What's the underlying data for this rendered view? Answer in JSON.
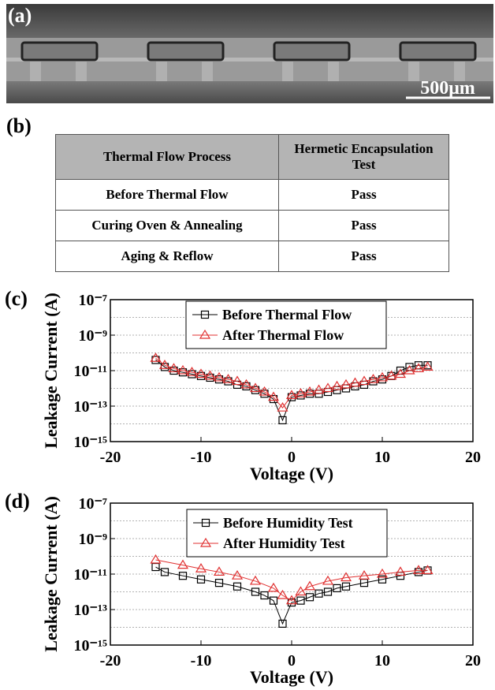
{
  "panels": {
    "a": "(a)",
    "b": "(b)",
    "c": "(c)",
    "d": "(d)"
  },
  "image": {
    "scale_bar": "500μm"
  },
  "table": {
    "header": [
      "Thermal Flow Process",
      "Hermetic Encapsulation Test"
    ],
    "rows": [
      [
        "Before Thermal Flow",
        "Pass"
      ],
      [
        "Curing Oven & Annealing",
        "Pass"
      ],
      [
        "Aging & Reflow",
        "Pass"
      ]
    ]
  },
  "chart_data": [
    {
      "type": "line",
      "log_y": true,
      "x_label": "Voltage (V)",
      "y_label": "Leakage Current (A)",
      "legend": "top",
      "grid": true,
      "xlim": [
        -20,
        20
      ],
      "xticks": [
        -20,
        -10,
        0,
        10,
        20
      ],
      "ylim": [
        1e-15,
        1e-07
      ],
      "yticks": [
        {
          "value": 1e-15,
          "label": "10⁻¹⁵"
        },
        {
          "value": 1e-13,
          "label": "10⁻¹³"
        },
        {
          "value": 1e-11,
          "label": "10⁻¹¹"
        },
        {
          "value": 1e-09,
          "label": "10⁻⁹"
        },
        {
          "value": 1e-07,
          "label": "10⁻⁷"
        }
      ],
      "minor_yticks": [
        1e-14,
        1e-12,
        1e-10,
        1e-08
      ],
      "series": [
        {
          "name": "Before Thermal Flow",
          "color": "#000000",
          "marker": "square",
          "x": [
            -15,
            -14,
            -13,
            -12,
            -11,
            -10,
            -9,
            -8,
            -7,
            -6,
            -5,
            -4,
            -3,
            -2,
            -1,
            0,
            1,
            2,
            3,
            4,
            5,
            6,
            7,
            8,
            9,
            10,
            11,
            12,
            13,
            14,
            15
          ],
          "values": [
            4e-11,
            1.6e-11,
            1e-11,
            8e-12,
            6.3e-12,
            5e-12,
            4e-12,
            3.2e-12,
            2.5e-12,
            1.6e-12,
            1.3e-12,
            8e-13,
            5e-13,
            2.5e-13,
            1.6e-14,
            3.2e-13,
            4e-13,
            5e-13,
            5e-13,
            6.3e-13,
            8e-13,
            1e-12,
            1.3e-12,
            1.6e-12,
            2.5e-12,
            3.2e-12,
            5e-12,
            1e-11,
            1.6e-11,
            2e-11,
            2e-11
          ]
        },
        {
          "name": "After Thermal Flow",
          "color": "#e03030",
          "marker": "triangle",
          "x": [
            -15,
            -14,
            -13,
            -12,
            -11,
            -10,
            -9,
            -8,
            -7,
            -6,
            -5,
            -4,
            -3,
            -2,
            -1,
            0,
            1,
            2,
            3,
            4,
            5,
            6,
            7,
            8,
            9,
            10,
            11,
            12,
            13,
            14,
            15
          ],
          "values": [
            5e-11,
            2e-11,
            1.3e-11,
            1e-11,
            8e-12,
            6.3e-12,
            5e-12,
            4e-12,
            3.2e-12,
            2.5e-12,
            1.6e-12,
            1e-12,
            6.3e-13,
            3.2e-13,
            8e-14,
            4e-13,
            5e-13,
            6.3e-13,
            8e-13,
            1e-12,
            1.3e-12,
            1.6e-12,
            2e-12,
            2.5e-12,
            3.2e-12,
            4e-12,
            5e-12,
            6.3e-12,
            1e-11,
            1.3e-11,
            1.6e-11
          ]
        }
      ]
    },
    {
      "type": "line",
      "log_y": true,
      "x_label": "Voltage (V)",
      "y_label": "Leakage Current (A)",
      "legend": "top",
      "grid": true,
      "xlim": [
        -20,
        20
      ],
      "xticks": [
        -20,
        -10,
        0,
        10,
        20
      ],
      "ylim": [
        1e-15,
        1e-07
      ],
      "yticks": [
        {
          "value": 1e-15,
          "label": "10⁻¹⁵"
        },
        {
          "value": 1e-13,
          "label": "10⁻¹³"
        },
        {
          "value": 1e-11,
          "label": "10⁻¹¹"
        },
        {
          "value": 1e-09,
          "label": "10⁻⁹"
        },
        {
          "value": 1e-07,
          "label": "10⁻⁷"
        }
      ],
      "minor_yticks": [
        1e-14,
        1e-12,
        1e-10,
        1e-08
      ],
      "series": [
        {
          "name": "Before Humidity Test",
          "color": "#000000",
          "marker": "square",
          "x": [
            -15,
            -14,
            -12,
            -10,
            -8,
            -6,
            -4,
            -3,
            -2,
            -1,
            0,
            1,
            2,
            3,
            4,
            5,
            6,
            8,
            10,
            12,
            14,
            15
          ],
          "values": [
            2.5e-11,
            1.3e-11,
            8e-12,
            5e-12,
            3.2e-12,
            2e-12,
            1e-12,
            6.3e-13,
            3.2e-13,
            1.6e-14,
            2.5e-13,
            3.2e-13,
            5e-13,
            8e-13,
            1e-12,
            1.6e-12,
            2e-12,
            3.2e-12,
            5e-12,
            8e-12,
            1.3e-11,
            1.6e-11
          ]
        },
        {
          "name": "After Humidity Test",
          "color": "#e03030",
          "marker": "triangle",
          "x": [
            -15,
            -12,
            -10,
            -8,
            -6,
            -4,
            -2,
            -1,
            0,
            1,
            2,
            4,
            6,
            8,
            10,
            12,
            14,
            15
          ],
          "values": [
            6.3e-11,
            3.2e-11,
            2e-11,
            1.3e-11,
            8e-12,
            4e-12,
            1.6e-12,
            6.3e-13,
            3.2e-13,
            1e-12,
            2e-12,
            4e-12,
            6.3e-12,
            8e-12,
            1e-11,
            1.3e-11,
            1.6e-11,
            1.6e-11
          ]
        }
      ]
    }
  ]
}
